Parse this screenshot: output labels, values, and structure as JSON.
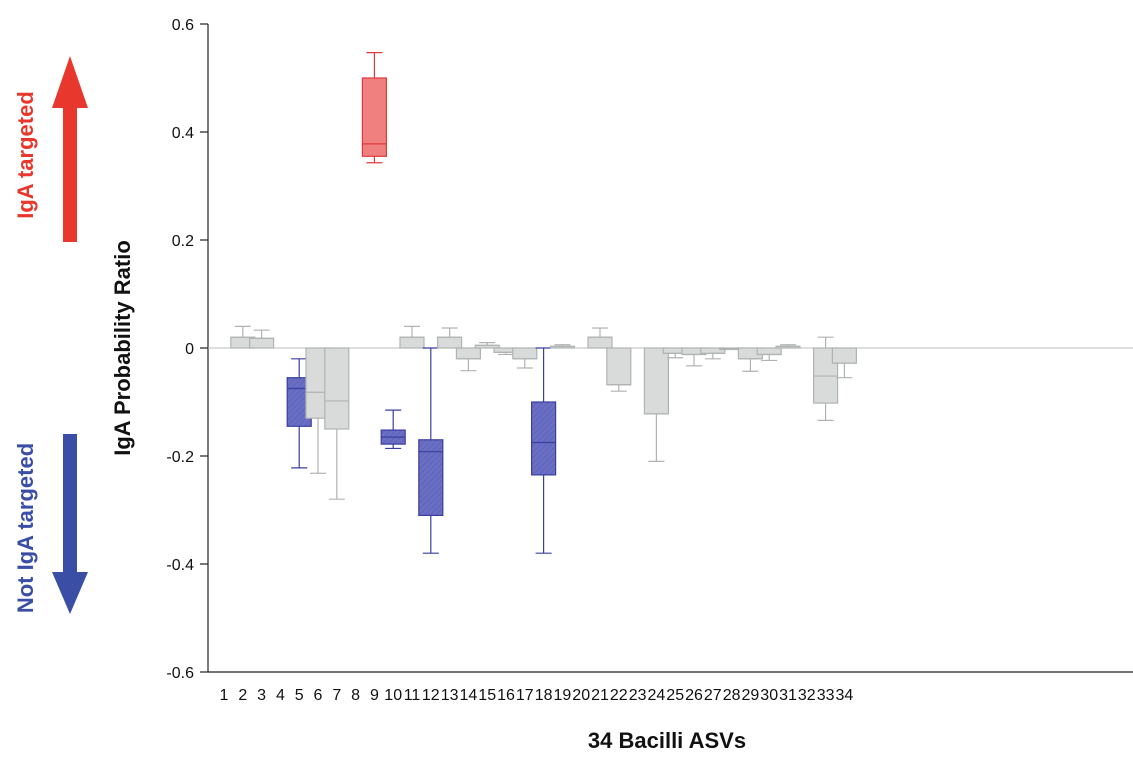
{
  "chart_data": {
    "type": "box",
    "xlabel": "34 Bacilli ASVs",
    "ylabel": "IgA Probability Ratio",
    "ylim": [
      -0.6,
      0.6
    ],
    "yticks": [
      0.6,
      0.4,
      0.2,
      0,
      -0.2,
      -0.4,
      -0.6
    ],
    "ytick_labels": [
      "0.6",
      "0.4",
      "0.2",
      "0",
      "-0.2",
      "-0.4",
      "-0.6"
    ],
    "categories": [
      "1",
      "2",
      "3",
      "4",
      "5",
      "6",
      "7",
      "8",
      "9",
      "10",
      "11",
      "12",
      "13",
      "14",
      "15",
      "16",
      "17",
      "18",
      "19",
      "20",
      "21",
      "22",
      "23",
      "24",
      "25",
      "26",
      "27",
      "28",
      "29",
      "30",
      "31",
      "32",
      "33",
      "34"
    ],
    "annotations": {
      "up_label": "IgA targeted",
      "down_label": "Not IgA targeted"
    },
    "colors": {
      "targeted": "#f08080",
      "targeted_edge": "#e03a3a",
      "not_targeted": "#6a6fc4",
      "not_targeted_edge": "#3a3f9e",
      "neutral": "#d9dbdb",
      "neutral_edge": "#b0b3b3",
      "up_arrow": "#e8372c",
      "down_arrow": "#3b4ea6"
    },
    "boxes": [
      {
        "x": "2",
        "q1": 0,
        "median": 0.02,
        "q3": 0.02,
        "whisker_low": 0,
        "whisker_high": 0.04,
        "group": "neutral"
      },
      {
        "x": "3",
        "q1": 0,
        "median": 0.018,
        "q3": 0.018,
        "whisker_low": 0,
        "whisker_high": 0.033,
        "group": "neutral"
      },
      {
        "x": "5",
        "q1": -0.145,
        "median": -0.075,
        "q3": -0.055,
        "whisker_low": -0.222,
        "whisker_high": -0.02,
        "group": "not_targeted"
      },
      {
        "x": "6",
        "q1": -0.13,
        "median": -0.082,
        "q3": 0,
        "whisker_low": -0.232,
        "whisker_high": 0,
        "group": "neutral"
      },
      {
        "x": "7",
        "q1": -0.15,
        "median": -0.098,
        "q3": 0,
        "whisker_low": -0.28,
        "whisker_high": 0,
        "group": "neutral"
      },
      {
        "x": "9",
        "q1": 0.355,
        "median": 0.378,
        "q3": 0.5,
        "whisker_low": 0.343,
        "whisker_high": 0.547,
        "group": "targeted"
      },
      {
        "x": "10",
        "q1": -0.178,
        "median": -0.165,
        "q3": -0.152,
        "whisker_low": -0.186,
        "whisker_high": -0.115,
        "group": "not_targeted"
      },
      {
        "x": "11",
        "q1": 0,
        "median": 0.02,
        "q3": 0.02,
        "whisker_low": 0,
        "whisker_high": 0.04,
        "group": "neutral"
      },
      {
        "x": "12",
        "q1": -0.31,
        "median": -0.192,
        "q3": -0.17,
        "whisker_low": -0.38,
        "whisker_high": 0,
        "group": "not_targeted"
      },
      {
        "x": "13",
        "q1": 0,
        "median": 0.02,
        "q3": 0.02,
        "whisker_low": 0,
        "whisker_high": 0.037,
        "group": "neutral"
      },
      {
        "x": "14",
        "q1": -0.02,
        "median": -0.02,
        "q3": 0,
        "whisker_low": -0.042,
        "whisker_high": 0,
        "group": "neutral"
      },
      {
        "x": "15",
        "q1": 0,
        "median": 0.005,
        "q3": 0.005,
        "whisker_low": 0,
        "whisker_high": 0.01,
        "group": "neutral"
      },
      {
        "x": "16",
        "q1": -0.008,
        "median": -0.008,
        "q3": 0,
        "whisker_low": -0.012,
        "whisker_high": 0,
        "group": "neutral"
      },
      {
        "x": "17",
        "q1": -0.02,
        "median": -0.02,
        "q3": 0,
        "whisker_low": -0.037,
        "whisker_high": 0,
        "group": "neutral"
      },
      {
        "x": "18",
        "q1": -0.235,
        "median": -0.175,
        "q3": -0.1,
        "whisker_low": -0.38,
        "whisker_high": 0,
        "group": "not_targeted"
      },
      {
        "x": "19",
        "q1": 0,
        "median": 0.003,
        "q3": 0.003,
        "whisker_low": 0,
        "whisker_high": 0.006,
        "group": "neutral"
      },
      {
        "x": "21",
        "q1": 0,
        "median": 0.02,
        "q3": 0.02,
        "whisker_low": 0,
        "whisker_high": 0.037,
        "group": "neutral"
      },
      {
        "x": "22",
        "q1": -0.068,
        "median": -0.068,
        "q3": 0,
        "whisker_low": -0.08,
        "whisker_high": 0,
        "group": "neutral"
      },
      {
        "x": "24",
        "q1": -0.122,
        "median": -0.122,
        "q3": 0,
        "whisker_low": -0.21,
        "whisker_high": 0,
        "group": "neutral"
      },
      {
        "x": "25",
        "q1": -0.01,
        "median": -0.01,
        "q3": 0,
        "whisker_low": -0.018,
        "whisker_high": 0,
        "group": "neutral"
      },
      {
        "x": "26",
        "q1": -0.012,
        "median": -0.012,
        "q3": 0,
        "whisker_low": -0.033,
        "whisker_high": 0,
        "group": "neutral"
      },
      {
        "x": "27",
        "q1": -0.01,
        "median": -0.01,
        "q3": 0,
        "whisker_low": -0.02,
        "whisker_high": 0,
        "group": "neutral"
      },
      {
        "x": "28",
        "q1": -0.002,
        "median": -0.002,
        "q3": 0,
        "whisker_low": -0.002,
        "whisker_high": 0,
        "group": "neutral"
      },
      {
        "x": "29",
        "q1": -0.02,
        "median": -0.02,
        "q3": 0,
        "whisker_low": -0.043,
        "whisker_high": 0,
        "group": "neutral"
      },
      {
        "x": "30",
        "q1": -0.012,
        "median": -0.012,
        "q3": 0,
        "whisker_low": -0.023,
        "whisker_high": 0,
        "group": "neutral"
      },
      {
        "x": "31",
        "q1": 0,
        "median": 0.003,
        "q3": 0.003,
        "whisker_low": 0,
        "whisker_high": 0.006,
        "group": "neutral"
      },
      {
        "x": "33",
        "q1": -0.102,
        "median": -0.052,
        "q3": 0,
        "whisker_low": -0.134,
        "whisker_high": 0.02,
        "group": "neutral"
      },
      {
        "x": "34",
        "q1": -0.028,
        "median": -0.028,
        "q3": 0,
        "whisker_low": -0.055,
        "whisker_high": 0,
        "group": "neutral"
      }
    ]
  }
}
